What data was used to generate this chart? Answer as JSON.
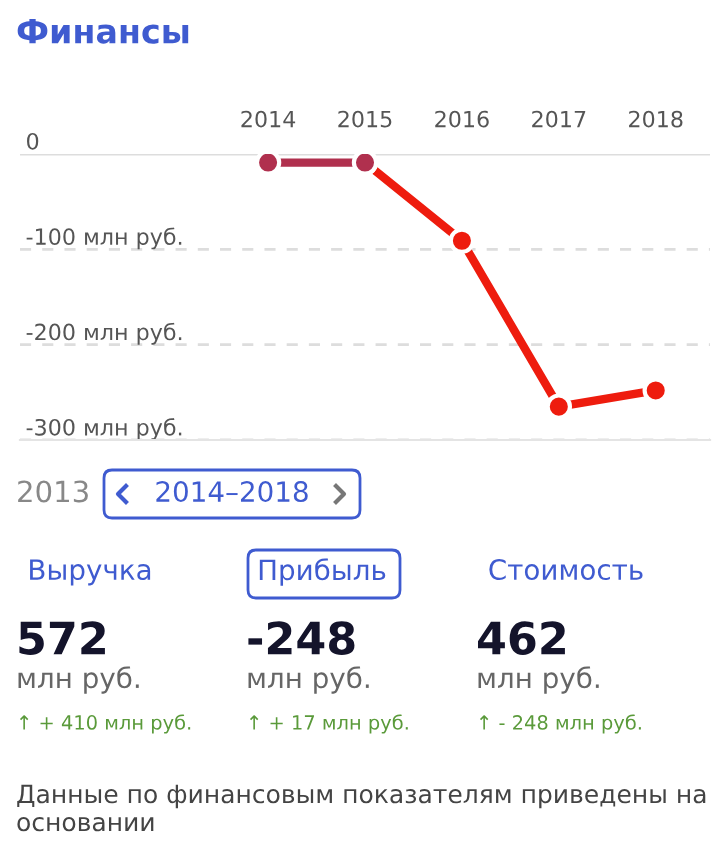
{
  "chart_data": [
    {
      "type": "line",
      "title": "Финансы",
      "categories": [
        "2014",
        "2015",
        "2016",
        "2017",
        "2018"
      ],
      "series": [
        {
          "values": [
            null,
            -9,
            -91,
            -265,
            -248
          ],
          "color": "#ee1c0e"
        },
        {
          "values": [
            -9,
            -9,
            null,
            null,
            null
          ],
          "color": "#b0304e"
        }
      ],
      "ylim": [
        -300,
        0
      ],
      "yticks": [
        0,
        {
          "value": -100,
          "label": "-100 млн руб."
        },
        {
          "value": -200,
          "label": "-200 млн руб."
        },
        {
          "value": -300,
          "label": "-300 млн руб."
        }
      ],
      "grid": "y",
      "marker": "circle",
      "line_style": "solid",
      "legend": false
    },
    {
      "type": "other",
      "annotations": [
        "2013",
        "2014–2018",
        "Выручка",
        "Прибыль",
        "Стоимость",
        "572",
        "млн руб.",
        "-248",
        "млн руб.",
        "462",
        "млн руб.",
        "↑ + 410 млн руб.",
        "↑ + 17 млн руб.",
        "↑ - 248 млн руб.",
        "Данные по финансовым показателям приведены на основании"
      ]
    }
  ]
}
